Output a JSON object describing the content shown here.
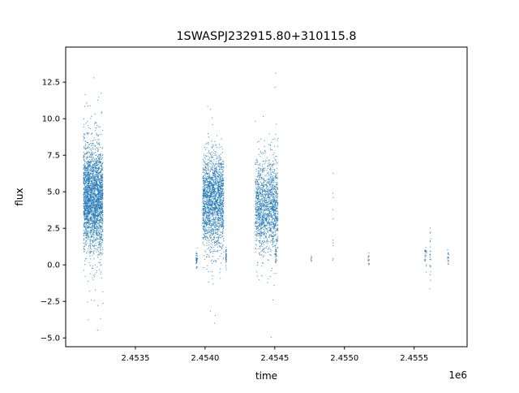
{
  "chart_data": {
    "type": "scatter",
    "title": "1SWASPJ232915.80+310115.8",
    "xlabel": "time",
    "ylabel": "flux",
    "x_offset_label": "1e6",
    "xlim": [
      2453000,
      2455880
    ],
    "ylim": [
      -5.6,
      14.9
    ],
    "xticks": [
      2453500,
      2454000,
      2454500,
      2455000,
      2455500
    ],
    "xtick_labels": [
      "2.4535",
      "2.4540",
      "2.4545",
      "2.4550",
      "2.4555"
    ],
    "yticks": [
      -5.0,
      -2.5,
      0.0,
      2.5,
      5.0,
      7.5,
      10.0,
      12.5
    ],
    "ytick_labels": [
      "−5.0",
      "−2.5",
      "0.0",
      "2.5",
      "5.0",
      "7.5",
      "10.0",
      "12.5"
    ],
    "grid": false,
    "marker_color": "#1f77b4",
    "clusters": [
      {
        "t_start": 2453128,
        "t_end": 2453267,
        "flux_mean": 4.6,
        "flux_sd": 1.8,
        "count": 2600
      },
      {
        "t_start": 2453983,
        "t_end": 2454134,
        "flux_mean": 4.4,
        "flux_sd": 1.6,
        "count": 1900
      },
      {
        "t_start": 2453935,
        "t_end": 2453945,
        "flux_mean": 0.4,
        "flux_sd": 0.3,
        "count": 40
      },
      {
        "t_start": 2454148,
        "t_end": 2454154,
        "flux_mean": 0.6,
        "flux_sd": 0.3,
        "count": 40
      },
      {
        "t_start": 2454360,
        "t_end": 2454523,
        "flux_mean": 4.1,
        "flux_sd": 1.6,
        "count": 1500
      },
      {
        "t_start": 2454505,
        "t_end": 2454512,
        "flux_mean": 0.8,
        "flux_sd": 0.3,
        "count": 30
      },
      {
        "t_start": 2454760,
        "t_end": 2454764,
        "flux_mean": 0.4,
        "flux_sd": 0.15,
        "count": 8
      },
      {
        "t_start": 2454917,
        "t_end": 2454920,
        "flux_mean": 3.5,
        "flux_sd": 3.0,
        "count": 10
      },
      {
        "t_start": 2455170,
        "t_end": 2455178,
        "flux_mean": 0.3,
        "flux_sd": 0.2,
        "count": 15
      },
      {
        "t_start": 2455575,
        "t_end": 2455590,
        "flux_mean": 0.6,
        "flux_sd": 0.3,
        "count": 25
      },
      {
        "t_start": 2455612,
        "t_end": 2455620,
        "flux_mean": 0.8,
        "flux_sd": 1.2,
        "count": 25
      },
      {
        "t_start": 2455740,
        "t_end": 2455748,
        "flux_mean": 0.5,
        "flux_sd": 0.25,
        "count": 20
      }
    ]
  }
}
